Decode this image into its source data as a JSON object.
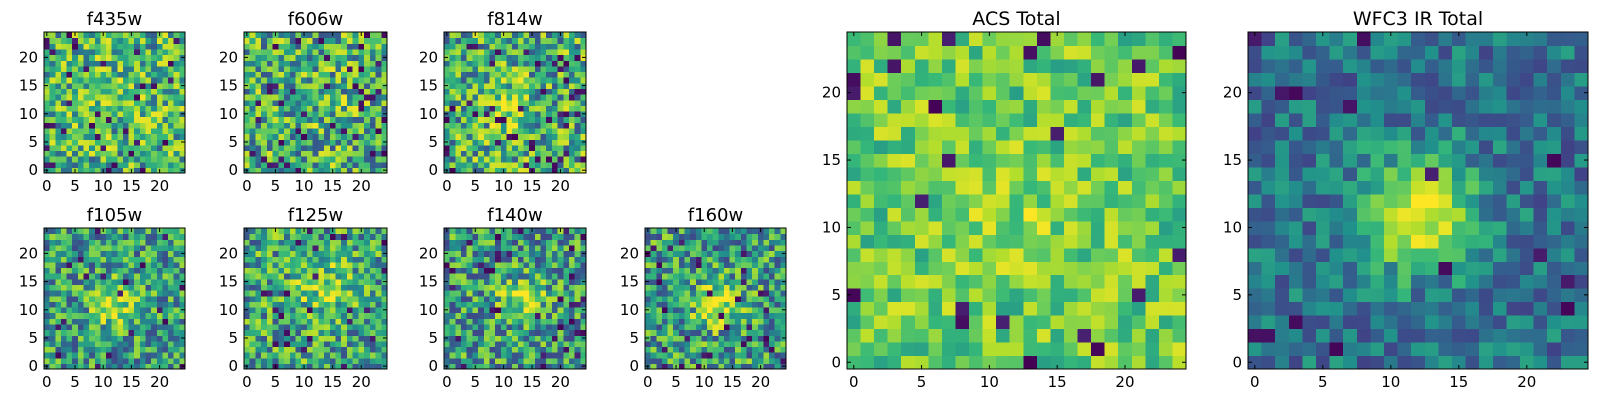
{
  "figure": {
    "width": 1600,
    "height": 400
  },
  "chart_data": [
    {
      "type": "heatmap",
      "title": "f435w",
      "grid_size": 25,
      "colormap": "viridis",
      "value_range": [
        0,
        1
      ],
      "xlim": [
        -0.5,
        24.5
      ],
      "ylim": [
        -0.5,
        24.5
      ],
      "xticks": [
        0,
        5,
        10,
        15,
        20
      ],
      "yticks": [
        0,
        5,
        10,
        15,
        20
      ],
      "pattern": {
        "base": 0.66,
        "spread": 0.3,
        "blob_center": [
          12,
          13
        ],
        "blob_sigma": 5,
        "blob_amp": 0.05,
        "dark_rate": 0.05,
        "seed": 11
      }
    },
    {
      "type": "heatmap",
      "title": "f606w",
      "grid_size": 25,
      "colormap": "viridis",
      "value_range": [
        0,
        1
      ],
      "xlim": [
        -0.5,
        24.5
      ],
      "ylim": [
        -0.5,
        24.5
      ],
      "xticks": [
        0,
        5,
        10,
        15,
        20
      ],
      "yticks": [
        0,
        5,
        10,
        15,
        20
      ],
      "pattern": {
        "base": 0.64,
        "spread": 0.32,
        "blob_center": [
          12,
          12
        ],
        "blob_sigma": 5,
        "blob_amp": 0.04,
        "dark_rate": 0.06,
        "seed": 23
      }
    },
    {
      "type": "heatmap",
      "title": "f814w",
      "grid_size": 25,
      "colormap": "viridis",
      "value_range": [
        0,
        1
      ],
      "xlim": [
        -0.5,
        24.5
      ],
      "ylim": [
        -0.5,
        24.5
      ],
      "xticks": [
        0,
        5,
        10,
        15,
        20
      ],
      "yticks": [
        0,
        5,
        10,
        15,
        20
      ],
      "pattern": {
        "base": 0.64,
        "spread": 0.32,
        "blob_center": [
          11,
          11
        ],
        "blob_sigma": 3,
        "blob_amp": 0.15,
        "dark_rate": 0.07,
        "seed": 37
      }
    },
    {
      "type": "heatmap",
      "title": "f105w",
      "grid_size": 25,
      "colormap": "viridis",
      "value_range": [
        0,
        1
      ],
      "xlim": [
        -0.5,
        24.5
      ],
      "ylim": [
        -0.5,
        24.5
      ],
      "xticks": [
        0,
        5,
        10,
        15,
        20
      ],
      "yticks": [
        0,
        5,
        10,
        15,
        20
      ],
      "pattern": {
        "base": 0.56,
        "spread": 0.28,
        "blob_center": [
          12,
          11
        ],
        "blob_sigma": 3,
        "blob_amp": 0.3,
        "dark_rate": 0.04,
        "seed": 41
      }
    },
    {
      "type": "heatmap",
      "title": "f125w",
      "grid_size": 25,
      "colormap": "viridis",
      "value_range": [
        0,
        1
      ],
      "xlim": [
        -0.5,
        24.5
      ],
      "ylim": [
        -0.5,
        24.5
      ],
      "xticks": [
        0,
        5,
        10,
        15,
        20
      ],
      "yticks": [
        0,
        5,
        10,
        15,
        20
      ],
      "pattern": {
        "base": 0.6,
        "spread": 0.3,
        "blob_center": [
          14,
          14
        ],
        "blob_sigma": 4,
        "blob_amp": 0.2,
        "dark_rate": 0.05,
        "seed": 53
      }
    },
    {
      "type": "heatmap",
      "title": "f140w",
      "grid_size": 25,
      "colormap": "viridis",
      "value_range": [
        0,
        1
      ],
      "xlim": [
        -0.5,
        24.5
      ],
      "ylim": [
        -0.5,
        24.5
      ],
      "xticks": [
        0,
        5,
        10,
        15,
        20
      ],
      "yticks": [
        0,
        5,
        10,
        15,
        20
      ],
      "pattern": {
        "base": 0.56,
        "spread": 0.3,
        "blob_center": [
          13,
          12
        ],
        "blob_sigma": 3,
        "blob_amp": 0.28,
        "dark_rate": 0.05,
        "seed": 67
      }
    },
    {
      "type": "heatmap",
      "title": "f160w",
      "grid_size": 25,
      "colormap": "viridis",
      "value_range": [
        0,
        1
      ],
      "xlim": [
        -0.5,
        24.5
      ],
      "ylim": [
        -0.5,
        24.5
      ],
      "xticks": [
        0,
        5,
        10,
        15,
        20
      ],
      "yticks": [
        0,
        5,
        10,
        15,
        20
      ],
      "pattern": {
        "base": 0.56,
        "spread": 0.3,
        "blob_center": [
          12,
          11
        ],
        "blob_sigma": 3,
        "blob_amp": 0.3,
        "dark_rate": 0.06,
        "seed": 79
      }
    },
    {
      "type": "heatmap",
      "title": "ACS Total",
      "grid_size": 25,
      "colormap": "viridis",
      "value_range": [
        0,
        1
      ],
      "xlim": [
        -0.5,
        24.5
      ],
      "ylim": [
        -0.5,
        24.5
      ],
      "xticks": [
        0,
        5,
        10,
        15,
        20
      ],
      "yticks": [
        0,
        5,
        10,
        15,
        20
      ],
      "pattern": {
        "base": 0.74,
        "spread": 0.2,
        "blob_center": [
          12,
          11
        ],
        "blob_sigma": 3,
        "blob_amp": 0.08,
        "dark_rate": 0.04,
        "seed": 97
      }
    },
    {
      "type": "heatmap",
      "title": "WFC3 IR Total",
      "grid_size": 25,
      "colormap": "viridis",
      "value_range": [
        0,
        1
      ],
      "xlim": [
        -0.5,
        24.5
      ],
      "ylim": [
        -0.5,
        24.5
      ],
      "xticks": [
        0,
        5,
        10,
        15,
        20
      ],
      "yticks": [
        0,
        5,
        10,
        15,
        20
      ],
      "pattern": {
        "base": 0.4,
        "spread": 0.16,
        "blob_center": [
          12,
          11
        ],
        "blob_sigma": 3,
        "blob_amp": 0.58,
        "dark_rate": 0.02,
        "seed": 113
      }
    }
  ]
}
